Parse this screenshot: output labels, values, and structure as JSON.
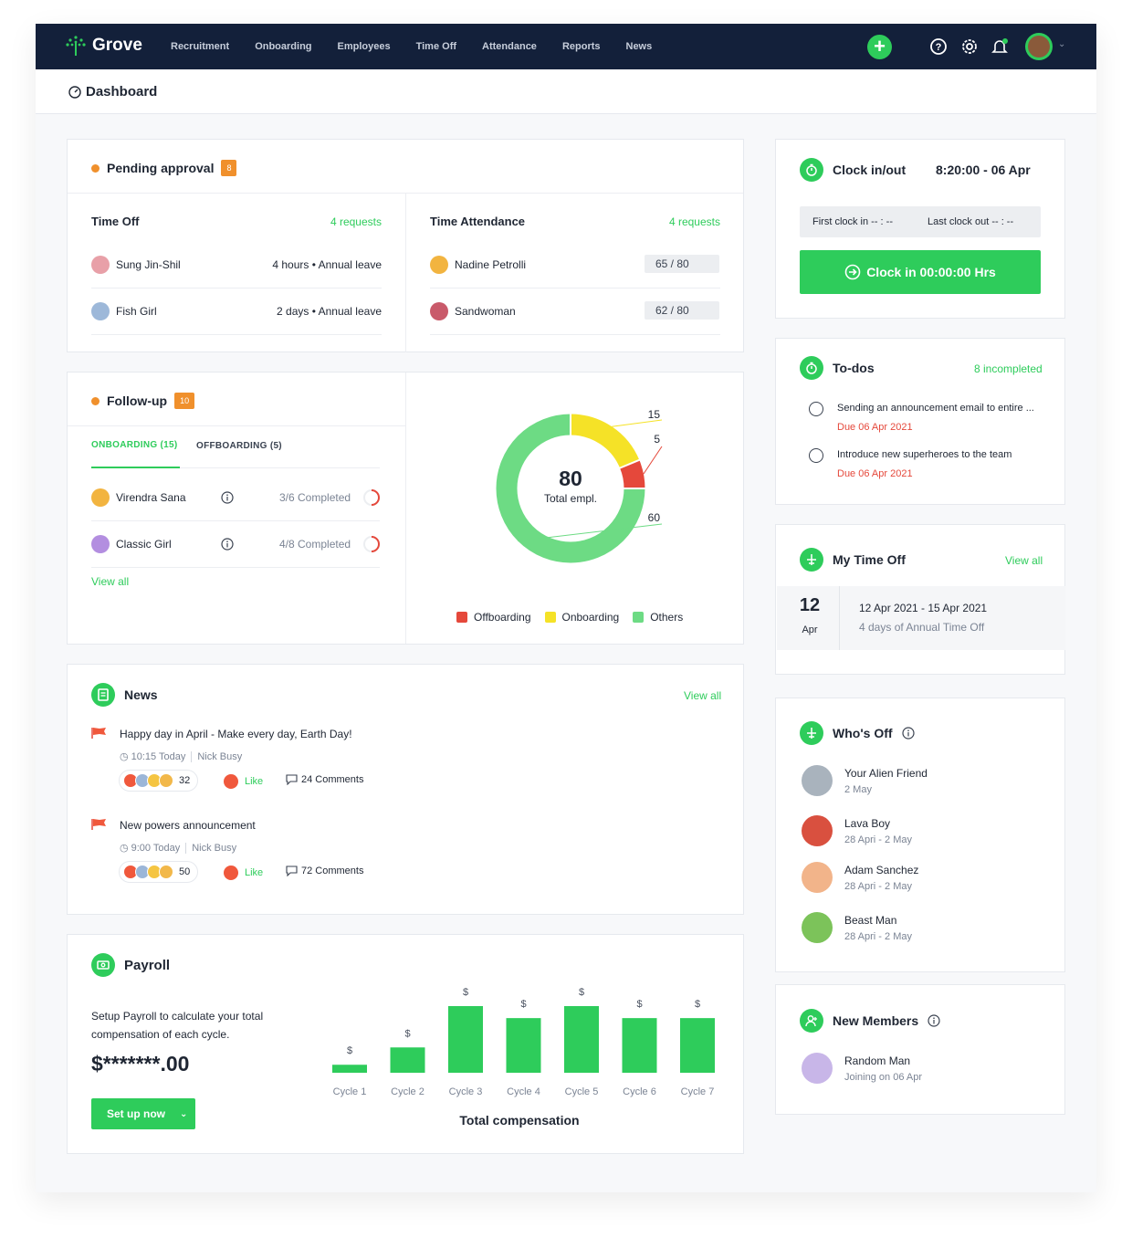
{
  "nav": {
    "brand": "Grove",
    "links": [
      "Recruitment",
      "Onboarding",
      "Employees",
      "Time Off",
      "Attendance",
      "Reports",
      "News"
    ]
  },
  "page_title": "Dashboard",
  "pending": {
    "title": "Pending approval",
    "count": "8",
    "time_off": {
      "title": "Time Off",
      "requests": "4 requests",
      "rows": [
        {
          "name": "Sung Jin-Shil",
          "detail": "4 hours • Annual leave"
        },
        {
          "name": "Fish Girl",
          "detail": "2 days • Annual leave"
        }
      ]
    },
    "attendance": {
      "title": "Time Attendance",
      "requests": "4 requests",
      "rows": [
        {
          "name": "Nadine Petrolli",
          "score": "65 / 80",
          "value": 65,
          "max": 80
        },
        {
          "name": "Sandwoman",
          "score": "62 / 80",
          "value": 62,
          "max": 80
        }
      ]
    }
  },
  "followup": {
    "title": "Follow-up",
    "count": "10",
    "tab_on": "ONBOARDING (15)",
    "tab_off": "OFFBOARDING (5)",
    "rows": [
      {
        "name": "Virendra Sana",
        "progress": "3/6 Completed",
        "done": 3,
        "total": 6
      },
      {
        "name": "Classic Girl",
        "progress": "4/8 Completed",
        "done": 4,
        "total": 8
      }
    ],
    "view_all": "View all",
    "donut": {
      "total": "80",
      "caption": "Total empl.",
      "labels": [
        "15",
        "5",
        "60"
      ],
      "legend": [
        "Offboarding",
        "Onboarding",
        "Others"
      ]
    }
  },
  "chart_data": [
    {
      "type": "pie",
      "categories": [
        "Onboarding",
        "Offboarding",
        "Others"
      ],
      "values": [
        15,
        5,
        60
      ],
      "colors": {
        "Onboarding": "#f5e227",
        "Offboarding": "#e5483b",
        "Others": "#6ddb84"
      }
    },
    {
      "type": "bar",
      "title": "Total compensation",
      "categories": [
        "Cycle 1",
        "Cycle 2",
        "Cycle 3",
        "Cycle 4",
        "Cycle 5",
        "Cycle 6",
        "Cycle 7"
      ],
      "values": [
        0.12,
        0.38,
        1.0,
        0.82,
        1.0,
        0.82,
        0.82
      ],
      "bar_label": "$"
    }
  ],
  "news": {
    "title": "News",
    "view_all": "View all",
    "items": [
      {
        "headline": "Happy day in April - Make every day, Earth Day!",
        "time": "10:15 Today",
        "author": "Nick Busy",
        "reactions": "32",
        "like": "Like",
        "comments": "24 Comments"
      },
      {
        "headline": "New powers announcement",
        "time": "9:00 Today",
        "author": "Nick Busy",
        "reactions": "50",
        "like": "Like",
        "comments": "72 Comments"
      }
    ]
  },
  "payroll": {
    "title": "Payroll",
    "desc1": "Setup Payroll to calculate your total",
    "desc2": "compensation of each cycle.",
    "amount": "$*******.00",
    "button": "Set up now",
    "chart_title": "Total compensation"
  },
  "clock": {
    "title": "Clock in/out",
    "time": "8:20:00 - 06 Apr",
    "first": "First clock in -- : --",
    "last": "Last clock out -- : --",
    "button": "Clock in 00:00:00 Hrs"
  },
  "todos": {
    "title": "To-dos",
    "incomplete": "8 incompleted",
    "items": [
      {
        "text": "Sending an announcement email to entire ...",
        "due": "Due 06 Apr 2021"
      },
      {
        "text": "Introduce new superheroes to the team",
        "due": "Due 06 Apr 2021"
      }
    ]
  },
  "mytimeoff": {
    "title": "My Time Off",
    "view_all": "View all",
    "day": "12",
    "month": "Apr",
    "range": "12 Apr 2021 - 15 Apr 2021",
    "desc": "4 days of Annual Time Off"
  },
  "whosoff": {
    "title": "Who's Off",
    "people": [
      {
        "name": "Your Alien Friend",
        "dates": "2 May",
        "color": "#a9b3bd"
      },
      {
        "name": "Lava Boy",
        "dates": "28 Apri - 2 May",
        "color": "#d9503f"
      },
      {
        "name": "Adam Sanchez",
        "dates": "28 Apri - 2 May",
        "color": "#f2b48a"
      },
      {
        "name": "Beast Man",
        "dates": "28 Apri - 2 May",
        "color": "#7cc35a"
      }
    ]
  },
  "members": {
    "title": "New Members",
    "name": "Random Man",
    "joining": "Joining on 06 Apr"
  },
  "colors": {
    "accent": "#2ecc5b",
    "nav": "#13203a",
    "orange": "#f0902c",
    "red": "#e5483b"
  }
}
